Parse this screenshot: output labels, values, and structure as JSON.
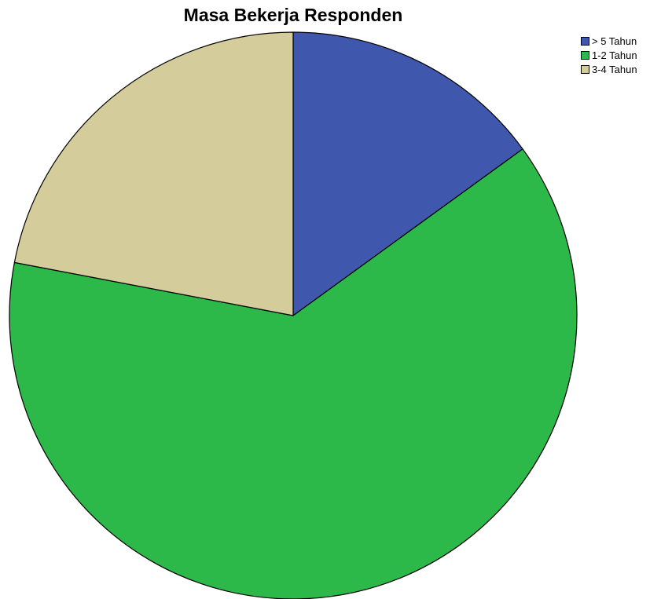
{
  "chart_data": {
    "type": "pie",
    "title": "Masa Bekerja Responden",
    "categories": [
      "> 5 Tahun",
      "1-2 Tahun",
      "3-4 Tahun"
    ],
    "values": [
      15,
      63,
      22
    ],
    "colors": [
      "#3f57ad",
      "#2db84a",
      "#d4cc9a"
    ],
    "slice_order": "clockwise from 12 o'clock",
    "legend_position": "top-right"
  }
}
